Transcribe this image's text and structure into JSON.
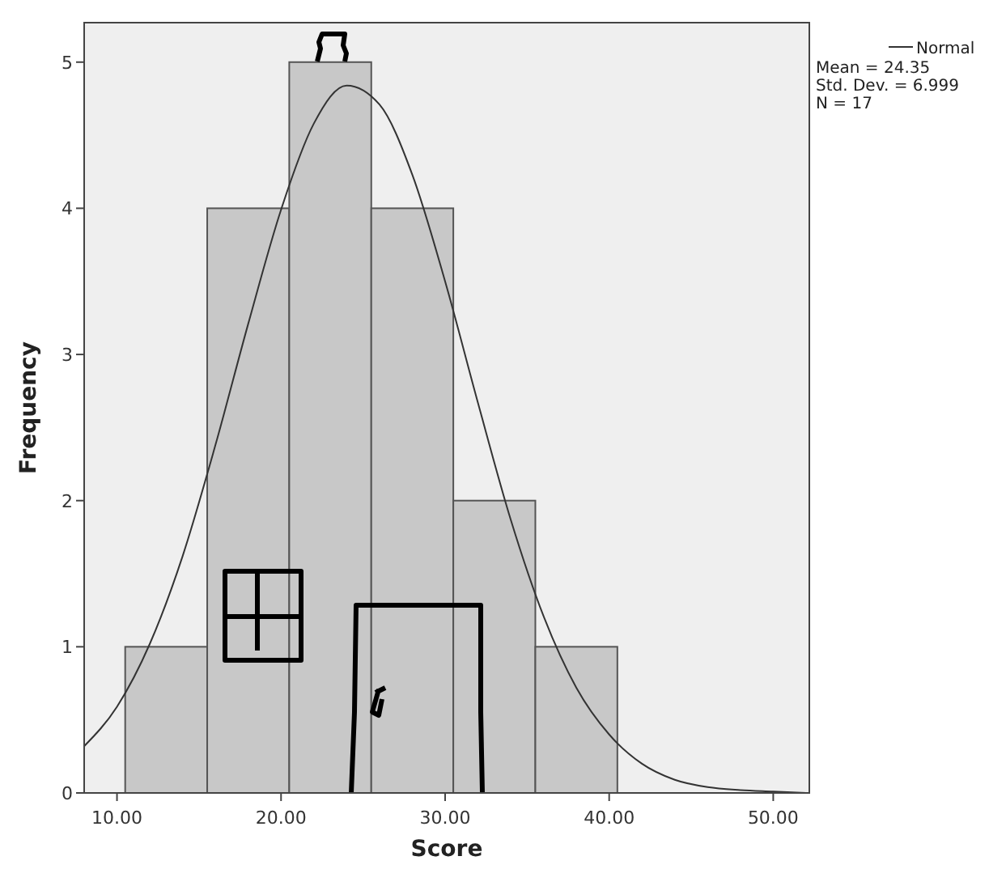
{
  "chart_data": {
    "type": "histogram",
    "xlabel": "Score",
    "ylabel": "Frequency",
    "series": [
      {
        "bins": [
          10.5,
          15.5,
          20.5,
          25.5,
          30.5,
          35.5,
          40.5
        ],
        "values": [
          1,
          4,
          5,
          4,
          2,
          1
        ],
        "color": "#c8c8c8"
      },
      {
        "type": "line",
        "name": "Normal",
        "color": "#333333",
        "x": [
          8,
          10,
          12,
          14,
          16,
          18,
          20,
          22,
          24,
          26,
          28,
          30,
          32,
          34,
          36,
          38,
          40,
          42,
          44,
          46,
          48,
          50,
          52
        ],
        "values": [
          0.32,
          0.59,
          1.02,
          1.62,
          2.38,
          3.21,
          3.99,
          4.58,
          4.84,
          4.71,
          4.23,
          3.5,
          2.67,
          1.87,
          1.21,
          0.72,
          0.4,
          0.2,
          0.09,
          0.04,
          0.02,
          0.01,
          0
        ]
      }
    ],
    "xlim": [
      8,
      52.2
    ],
    "xticks": [
      {
        "value": 10,
        "label": "10.00"
      },
      {
        "value": 20,
        "label": "20.00"
      },
      {
        "value": 30,
        "label": "30.00"
      },
      {
        "value": 40,
        "label": "40.00"
      },
      {
        "value": 50,
        "label": "50.00"
      }
    ],
    "ylim": [
      0,
      5.27
    ],
    "yticks": [
      0,
      1,
      2,
      3,
      4,
      5
    ],
    "legend": "top right",
    "annotations": [
      "Mean = 24.35",
      "Std. Dev. = 6.999",
      "N = 17"
    ]
  }
}
